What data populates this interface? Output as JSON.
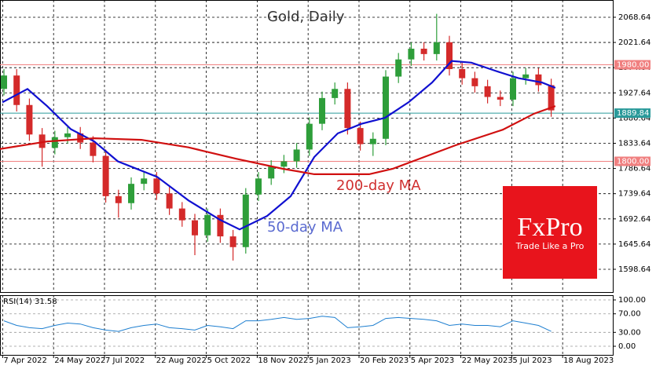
{
  "chart_data": [
    {
      "type": "candlestick",
      "title": "Gold, Daily",
      "xlim": [
        -0.31,
        47.84
      ],
      "xticks": [
        {
          "value": -0.1,
          "label": "7 Apr 2022"
        },
        {
          "value": 3.9,
          "label": "24 May 2022"
        },
        {
          "value": 7.9,
          "label": "7 Jul 2022"
        },
        {
          "value": 11.9,
          "label": "22 Aug 2022"
        },
        {
          "value": 15.9,
          "label": "5 Oct 2022"
        },
        {
          "value": 19.9,
          "label": "18 Nov 2022"
        },
        {
          "value": 23.9,
          "label": "5 Jan 2023"
        },
        {
          "value": 27.9,
          "label": "20 Feb 2023"
        },
        {
          "value": 31.9,
          "label": "5 Apr 2023"
        },
        {
          "value": 35.9,
          "label": "22 May 2023"
        },
        {
          "value": 39.9,
          "label": "5 Jul 2023"
        },
        {
          "value": 43.9,
          "label": "18 Aug 2023"
        }
      ],
      "ylim": [
        1556.2,
        2100.8
      ],
      "yticks": [
        2068.64,
        2021.64,
        1974.64,
        1927.64,
        1880.64,
        1833.64,
        1786.64,
        1739.64,
        1692.64,
        1645.64,
        1598.64
      ],
      "grid": true,
      "up_color": "#2e9e3a",
      "down_color": "#d42a2a",
      "open": [
        1935,
        1960,
        1905,
        1850,
        1825,
        1845,
        1852,
        1835,
        1810,
        1735,
        1722,
        1758,
        1768,
        1740,
        1712,
        1690,
        1662,
        1700,
        1660,
        1640,
        1738,
        1768,
        1790,
        1800,
        1822,
        1870,
        1918,
        1935,
        1862,
        1832,
        1842,
        1958,
        1990,
        2010,
        2000,
        2022,
        1972,
        1955,
        1940,
        1920,
        1915,
        1955,
        1962,
        1942
      ],
      "high": [
        1972,
        1972,
        1917,
        1862,
        1857,
        1864,
        1864,
        1847,
        1822,
        1747,
        1770,
        1780,
        1780,
        1752,
        1724,
        1702,
        1712,
        1712,
        1672,
        1750,
        1780,
        1802,
        1812,
        1834,
        1882,
        1930,
        1947,
        1947,
        1874,
        1854,
        1970,
        2002,
        2022,
        2022,
        2075,
        2034,
        1984,
        1967,
        1952,
        1932,
        1967,
        1974,
        1974,
        1954
      ],
      "low": [
        1923,
        1893,
        1838,
        1790,
        1813,
        1833,
        1823,
        1798,
        1723,
        1695,
        1710,
        1746,
        1728,
        1700,
        1678,
        1625,
        1650,
        1648,
        1615,
        1628,
        1726,
        1756,
        1778,
        1788,
        1810,
        1858,
        1906,
        1850,
        1820,
        1810,
        1830,
        1946,
        1978,
        1988,
        1988,
        1960,
        1943,
        1928,
        1908,
        1903,
        1903,
        1943,
        1930,
        1883
      ],
      "close": [
        1960,
        1905,
        1850,
        1825,
        1845,
        1852,
        1835,
        1810,
        1735,
        1722,
        1758,
        1768,
        1740,
        1712,
        1690,
        1662,
        1700,
        1660,
        1640,
        1738,
        1768,
        1790,
        1800,
        1822,
        1870,
        1918,
        1935,
        1862,
        1832,
        1842,
        1958,
        1990,
        2010,
        2000,
        2022,
        1972,
        1955,
        1940,
        1920,
        1915,
        1955,
        1962,
        1942,
        1895
      ],
      "series": [
        {
          "name": "50-day MA",
          "color": "#1010d0",
          "x": [
            -0.12,
            1.85,
            3.39,
            5.25,
            7.1,
            8.95,
            12.04,
            14.5,
            16.97,
            18.52,
            20.68,
            22.53,
            24.38,
            26.23,
            28.09,
            29.94,
            31.79,
            33.64,
            35.18,
            36.73,
            38.58,
            40.43,
            42.28,
            43.33
          ],
          "values": [
            1910,
            1935,
            1903,
            1860,
            1837,
            1800,
            1771,
            1727,
            1691,
            1673,
            1698,
            1735,
            1808,
            1852,
            1870,
            1881,
            1910,
            1947,
            1987,
            1984,
            1969,
            1955,
            1947,
            1937
          ]
        },
        {
          "name": "200-day MA",
          "color": "#d01010",
          "x": [
            -0.31,
            3.39,
            7.1,
            10.8,
            14.5,
            18.21,
            21.91,
            24.38,
            28.7,
            30.55,
            33.02,
            35.49,
            39.2,
            41.67,
            43.33
          ],
          "values": [
            1823,
            1837,
            1843,
            1840,
            1826,
            1805,
            1786,
            1776,
            1776,
            1786,
            1808,
            1830,
            1859,
            1889,
            1903
          ]
        }
      ],
      "levels": [
        {
          "value": 1980,
          "label": "1980.00",
          "color": "#f08080"
        },
        {
          "value": 1889.84,
          "color": "#2a9a9a"
        },
        {
          "value": 1800,
          "label": "1800.00",
          "color": "#f08080"
        }
      ]
    },
    {
      "type": "line",
      "title": "RSI(14) 31.58",
      "xlim": [
        -0.31,
        47.84
      ],
      "ylim": [
        -18.6,
        110.2
      ],
      "yticks": [
        {
          "value": 100,
          "label": "100.00"
        },
        {
          "value": 70,
          "label": "70.00"
        },
        {
          "value": 30,
          "label": "30.00"
        },
        {
          "value": 0,
          "label": "0.00"
        }
      ],
      "color": "#1e7fd0",
      "values": [
        55,
        45,
        40,
        38,
        45,
        50,
        48,
        40,
        35,
        32,
        40,
        45,
        48,
        40,
        38,
        35,
        45,
        42,
        38,
        55,
        55,
        58,
        62,
        58,
        60,
        65,
        62,
        40,
        42,
        45,
        60,
        62,
        60,
        58,
        55,
        45,
        48,
        45,
        45,
        42,
        55,
        50,
        45,
        32
      ]
    }
  ],
  "logo": {
    "name": "FxPro",
    "tagline": "Trade Like a Pro"
  }
}
